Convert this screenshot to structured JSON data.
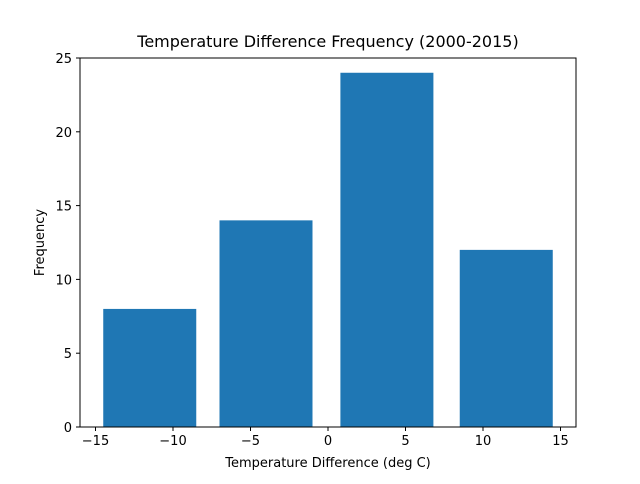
{
  "chart_data": {
    "type": "bar",
    "title": "Temperature Difference Frequency (2000-2015)",
    "xlabel": "Temperature Difference (deg C)",
    "ylabel": "Frequency",
    "bins": [
      {
        "x_start": -14.5,
        "x_end": -8.5,
        "value": 8
      },
      {
        "x_start": -7.0,
        "x_end": -1.0,
        "value": 14
      },
      {
        "x_start": 0.8,
        "x_end": 6.8,
        "value": 24
      },
      {
        "x_start": 8.5,
        "x_end": 14.5,
        "value": 12
      }
    ],
    "xlim": [
      -16,
      16
    ],
    "ylim": [
      0,
      25
    ],
    "xticks": [
      -15,
      -10,
      -5,
      0,
      5,
      10,
      15
    ],
    "xtick_labels": [
      "−15",
      "−10",
      "−5",
      "0",
      "5",
      "10",
      "15"
    ],
    "yticks": [
      0,
      5,
      10,
      15,
      20,
      25
    ],
    "ytick_labels": [
      "0",
      "5",
      "10",
      "15",
      "20",
      "25"
    ],
    "bar_color": "#1f77b4",
    "grid": false,
    "legend": "none"
  }
}
